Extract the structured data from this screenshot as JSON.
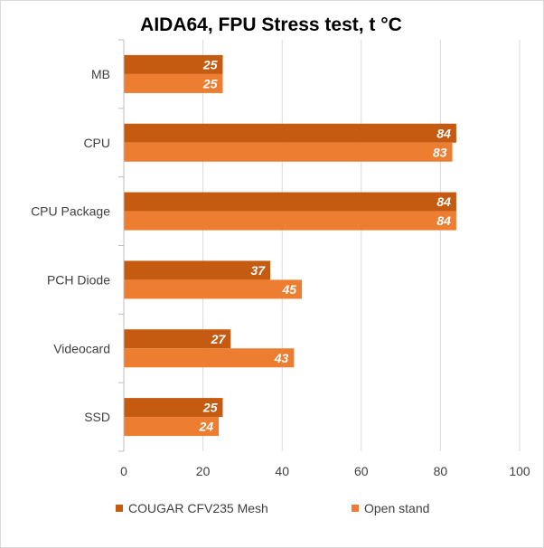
{
  "chart_data": {
    "type": "bar",
    "orientation": "horizontal",
    "title": "AIDA64, FPU Stress test, t °C",
    "categories": [
      "MB",
      "CPU",
      "CPU Package",
      "PCH Diode",
      "Videocard",
      "SSD"
    ],
    "series": [
      {
        "name": "COUGAR CFV235 Mesh",
        "color": "#c55a11",
        "values": [
          25,
          84,
          84,
          37,
          27,
          25
        ]
      },
      {
        "name": "Open stand",
        "color": "#ed7d31",
        "values": [
          25,
          83,
          84,
          45,
          43,
          24
        ]
      }
    ],
    "xlim": [
      0,
      100
    ],
    "xticks": [
      0,
      20,
      40,
      60,
      80,
      100
    ],
    "grid": true,
    "legend": "bottom",
    "data_labels": true
  }
}
